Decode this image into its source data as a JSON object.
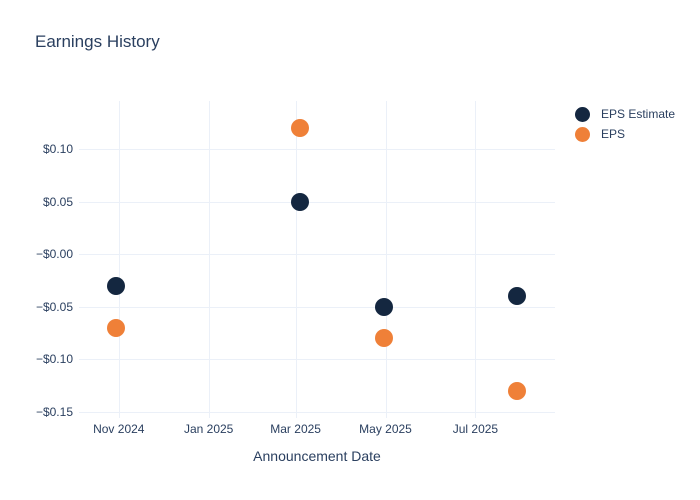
{
  "title": "Earnings History",
  "legend": {
    "items": [
      {
        "label": "EPS Estimate",
        "color": "#142740"
      },
      {
        "label": "EPS",
        "color": "#ef8038"
      }
    ]
  },
  "chart_data": {
    "type": "scatter",
    "title": "Earnings History",
    "xlabel": "Announcement Date",
    "ylabel": "",
    "background_color": "#ffffff",
    "grid_color": "#ebf0f8",
    "font_color": "#2a3f5f",
    "legend_position": "right-top",
    "marker_size_px": 18,
    "x_axis": {
      "kind": "date",
      "lim": [
        "2024-10-05",
        "2025-08-24"
      ],
      "ticks": [
        {
          "value": "2024-11-01",
          "label": "Nov 2024"
        },
        {
          "value": "2025-01-01",
          "label": "Jan 2025"
        },
        {
          "value": "2025-03-01",
          "label": "Mar 2025"
        },
        {
          "value": "2025-05-01",
          "label": "May 2025"
        },
        {
          "value": "2025-07-01",
          "label": "Jul 2025"
        }
      ]
    },
    "y_axis": {
      "kind": "linear",
      "lim": [
        -0.156,
        0.146
      ],
      "grid": true,
      "ticks": [
        {
          "value": 0.1,
          "label": "$0.10"
        },
        {
          "value": 0.05,
          "label": "$0.05"
        },
        {
          "value": 0.0,
          "label": "−$0.00"
        },
        {
          "value": -0.05,
          "label": "−$0.05"
        },
        {
          "value": -0.1,
          "label": "−$0.10"
        },
        {
          "value": -0.15,
          "label": "−$0.15"
        }
      ]
    },
    "series": [
      {
        "name": "EPS Estimate",
        "color": "#142740",
        "points": [
          {
            "x": "2024-10-30",
            "y": -0.03
          },
          {
            "x": "2025-03-04",
            "y": 0.05
          },
          {
            "x": "2025-04-30",
            "y": -0.05
          },
          {
            "x": "2025-07-29",
            "y": -0.04
          }
        ]
      },
      {
        "name": "EPS",
        "color": "#ef8038",
        "points": [
          {
            "x": "2024-10-30",
            "y": -0.07
          },
          {
            "x": "2025-03-04",
            "y": 0.12
          },
          {
            "x": "2025-04-30",
            "y": -0.08
          },
          {
            "x": "2025-07-29",
            "y": -0.13
          }
        ]
      }
    ]
  }
}
